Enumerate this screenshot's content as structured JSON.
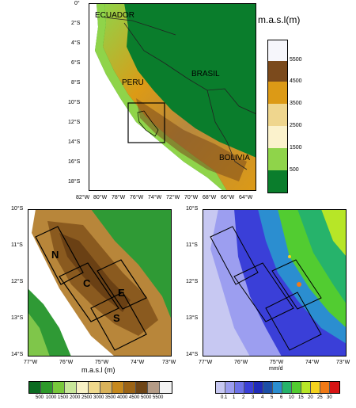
{
  "top_map": {
    "country_labels": {
      "ecuador": "ECUADOR",
      "peru": "PERU",
      "brasil": "BRASIL",
      "bolivia": "BOLIVIA"
    },
    "unit_title": "m.a.s.l(m)",
    "lat_ticks": [
      "0°",
      "2°S",
      "4°S",
      "6°S",
      "8°S",
      "10°S",
      "12°S",
      "14°S",
      "16°S",
      "18°S"
    ],
    "lon_ticks": [
      "82°W",
      "80°W",
      "78°W",
      "76°W",
      "74°W",
      "72°W",
      "70°W",
      "68°W",
      "66°W",
      "64°W"
    ],
    "legend": {
      "labels": [
        "5500",
        "4500",
        "3500",
        "2500",
        "1500",
        "500"
      ],
      "colors": [
        "#f6f6fb",
        "#7b4a1c",
        "#dc9a16",
        "#efd68e",
        "#fbf2cc",
        "#8fd44a",
        "#0a7d2c"
      ]
    }
  },
  "elev_map": {
    "box_labels": [
      "N",
      "C",
      "E",
      "S"
    ],
    "lat_ticks": [
      "10°S",
      "11°S",
      "12°S",
      "13°S",
      "14°S"
    ],
    "lon_ticks": [
      "77°W",
      "76°W",
      "75°W",
      "74°W",
      "73°W"
    ],
    "unit_label": "m.a.s.l (m)"
  },
  "precip_map": {
    "lat_ticks": [
      "10°S",
      "11°S",
      "12°S",
      "13°S",
      "14°S"
    ],
    "lon_ticks": [
      "77°W",
      "76°W",
      "75°W",
      "74°W",
      "73°W"
    ],
    "unit_label": "mm/d"
  },
  "elev_colorbar": {
    "labels": [
      "500",
      "1000",
      "1500",
      "2000",
      "2500",
      "3000",
      "3500",
      "4000",
      "4500",
      "5000",
      "5500"
    ],
    "colors": [
      "#0b6b21",
      "#2e9a2a",
      "#78c83c",
      "#c8e79a",
      "#f7f1c5",
      "#efd98c",
      "#d9b25a",
      "#c6891d",
      "#9c6416",
      "#6e4517",
      "#b49b86",
      "#f2f2f2"
    ]
  },
  "precip_colorbar": {
    "labels": [
      "0.1",
      "1",
      "2",
      "3",
      "4",
      "5",
      "6",
      "10",
      "15",
      "20",
      "25",
      "30"
    ],
    "colors": [
      "#c7c8f2",
      "#9c9ef0",
      "#6d72e8",
      "#3a3fd8",
      "#1f2bb9",
      "#1c4fa8",
      "#2b8ed0",
      "#26b36b",
      "#52cc31",
      "#b7e627",
      "#f4d21e",
      "#f07a17",
      "#d71414"
    ]
  }
}
